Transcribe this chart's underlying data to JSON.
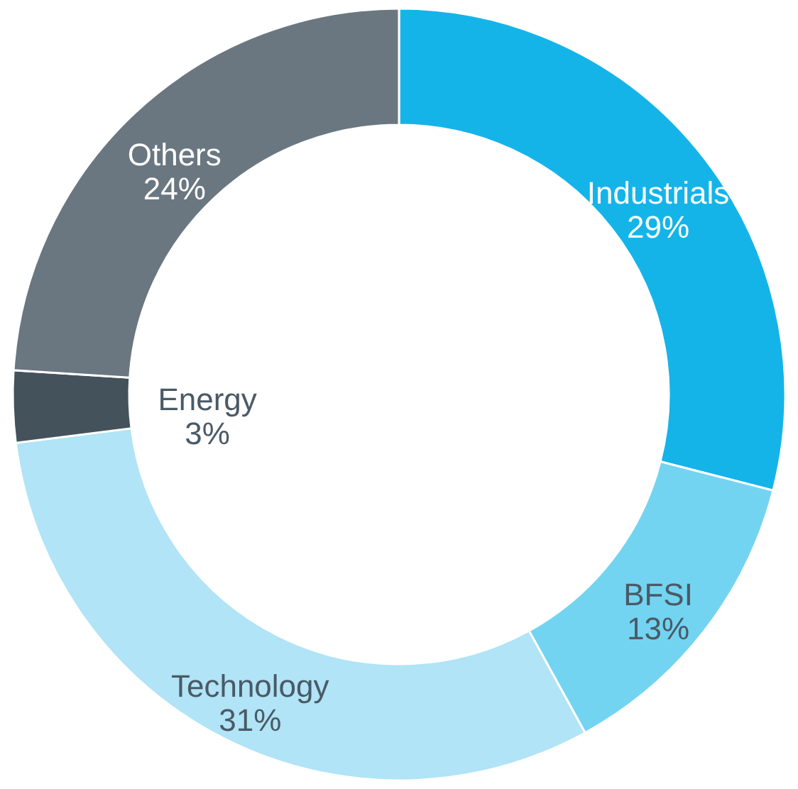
{
  "chart_data": {
    "type": "donut",
    "categories": [
      "Industrials",
      "BFSI",
      "Technology",
      "Energy",
      "Others"
    ],
    "values": [
      29,
      13,
      31,
      3,
      24
    ],
    "value_labels": [
      "29%",
      "13%",
      "31%",
      "3%",
      "24%"
    ],
    "colors": [
      "#14b4e9",
      "#73d4f1",
      "#b0e4f6",
      "#44525c",
      "#6a7780"
    ]
  }
}
